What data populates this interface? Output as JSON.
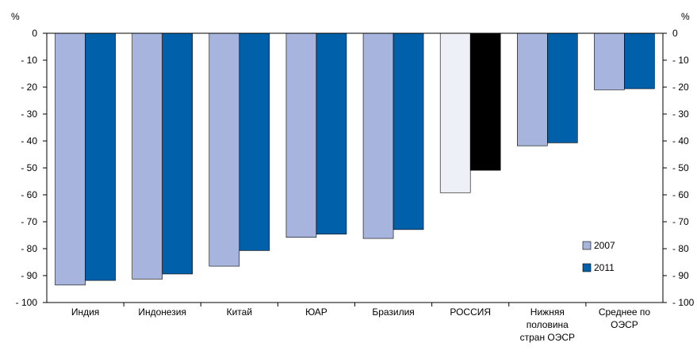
{
  "chart_data": {
    "type": "bar",
    "title": "",
    "y_unit_left": "%",
    "y_unit_right": "%",
    "ylim": [
      -100,
      0
    ],
    "yticks": [
      0,
      -10,
      -20,
      -30,
      -40,
      -50,
      -60,
      -70,
      -80,
      -90,
      -100
    ],
    "ytick_labels": [
      "0",
      "- 10",
      "- 20",
      "- 30",
      "- 40",
      "- 50",
      "- 60",
      "- 70",
      "- 80",
      "- 90",
      "- 100"
    ],
    "grid": false,
    "legend_position": "bottom-right",
    "categories": [
      [
        "Индия"
      ],
      [
        "Индонезия"
      ],
      [
        "Китай"
      ],
      [
        "ЮАР"
      ],
      [
        "Бразилия"
      ],
      [
        "РОССИЯ"
      ],
      [
        "Нижняя",
        "половина",
        "стран ОЭСР"
      ],
      [
        "Среднее по",
        "ОЭСР"
      ]
    ],
    "series": [
      {
        "name": "2007",
        "color": "#a7b4dd",
        "values": [
          -93.5,
          -91.3,
          -86.5,
          -75.8,
          -76.2,
          -59.2,
          -41.8,
          -21.0
        ],
        "highlight_index": 5,
        "highlight_color": "#eef0f8"
      },
      {
        "name": "2011",
        "color": "#0060a9",
        "values": [
          -91.8,
          -89.4,
          -80.7,
          -74.6,
          -72.9,
          -50.9,
          -40.7,
          -20.6
        ],
        "highlight_index": 5,
        "highlight_color": "#000000"
      }
    ]
  }
}
